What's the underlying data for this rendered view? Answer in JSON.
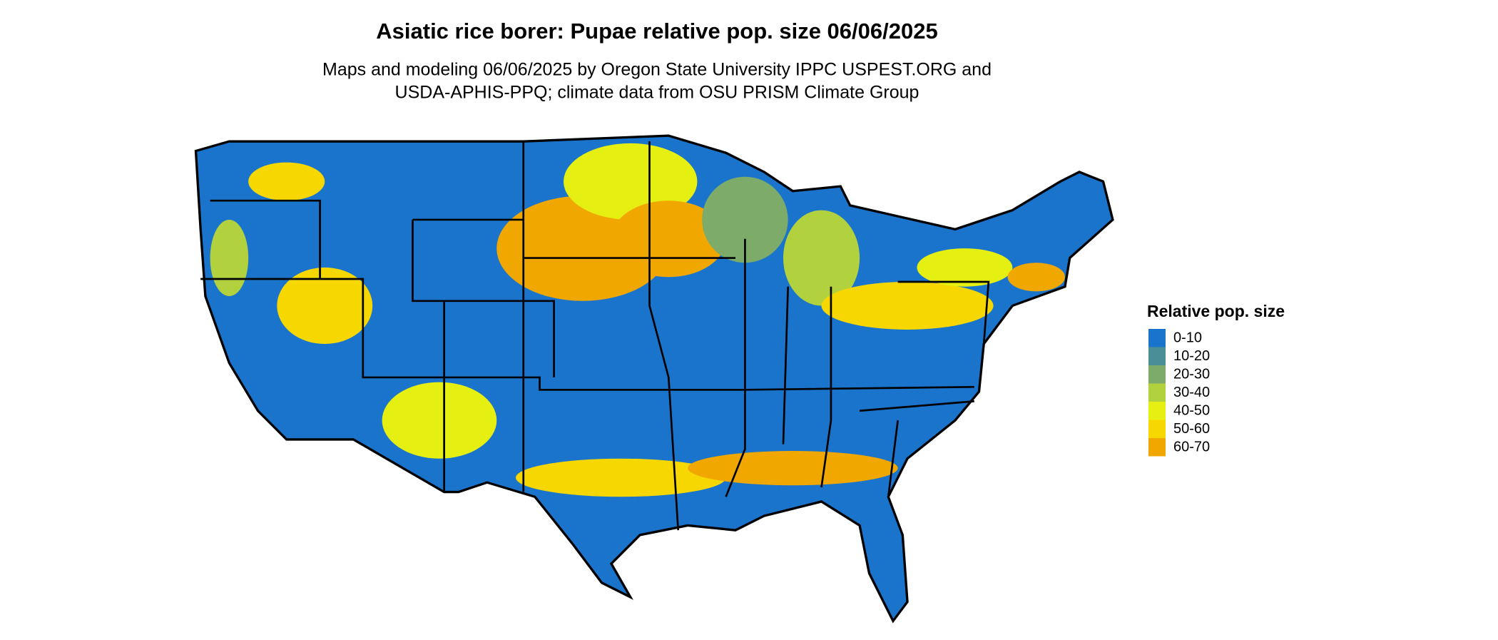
{
  "title": "Asiatic rice borer: Pupae relative pop. size 06/06/2025",
  "subtitle": [
    "Maps and modeling 06/06/2025 by Oregon State University IPPC USPEST.ORG and",
    "USDA-APHIS-PPQ; climate data from OSU PRISM Climate Group"
  ],
  "legend": {
    "title": "Relative pop. size",
    "items": [
      {
        "label": "0-10",
        "color": "#1b74cc"
      },
      {
        "label": "10-20",
        "color": "#4a8f98"
      },
      {
        "label": "20-30",
        "color": "#7dab6a"
      },
      {
        "label": "30-40",
        "color": "#b2d13e"
      },
      {
        "label": "40-50",
        "color": "#e6ef12"
      },
      {
        "label": "50-60",
        "color": "#f6d800"
      },
      {
        "label": "60-70",
        "color": "#f0a800"
      }
    ]
  }
}
